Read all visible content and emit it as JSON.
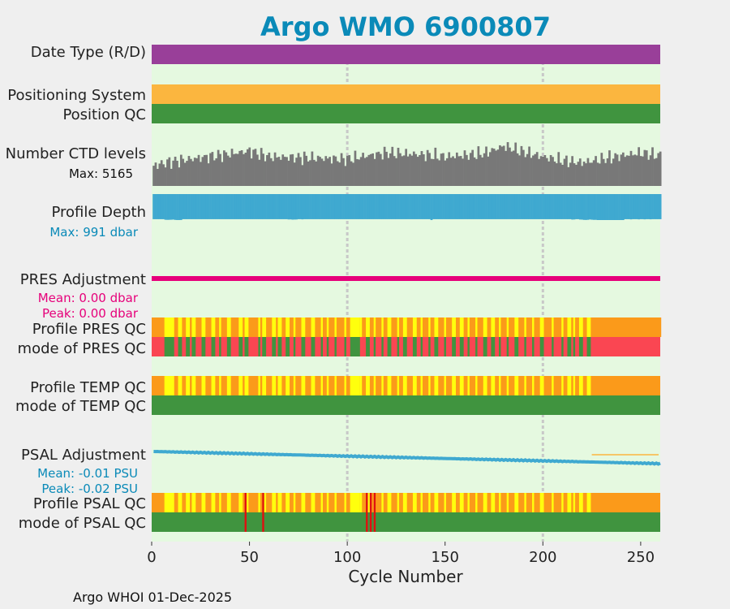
{
  "chart_data": {
    "type": "bar",
    "title": "Argo WMO 6900807",
    "xlabel": "Cycle Number",
    "footer": "Argo WHOI 01-Dec-2025",
    "xlim": [
      0,
      260
    ],
    "xticks": [
      "0",
      "50",
      "100",
      "150",
      "200",
      "250"
    ],
    "grid_x": [
      100,
      200
    ],
    "row_labels": {
      "date_type": "Date Type (R/D)",
      "positioning_system": "Positioning System",
      "position_qc": "Position QC",
      "number_ctd_levels": "Number CTD levels",
      "profile_depth": "Profile Depth",
      "pres_adjustment": "PRES Adjustment",
      "profile_pres_qc": "Profile PRES QC",
      "mode_pres_qc": "mode of PRES QC",
      "profile_temp_qc": "Profile TEMP QC",
      "mode_temp_qc": "mode of TEMP QC",
      "psal_adjustment": "PSAL Adjustment",
      "profile_psal_qc": "Profile PSAL QC",
      "mode_psal_qc": "mode of PSAL QC"
    },
    "annotations": {
      "ctd_max": "Max: 5165",
      "depth_max": "Max:  991 dbar",
      "pres_mean": "Mean: 0.00 dbar",
      "pres_peak": "Peak: 0.00 dbar",
      "psal_mean": "Mean: -0.01 PSU",
      "psal_peak": "Peak: -0.02 PSU"
    },
    "colors": {
      "title": "#0a8ab8",
      "panel_bg": "#e5f9e0",
      "page_bg": "#efefef",
      "date_type": "#993f99",
      "positioning": "#fbb63f",
      "qc_good": "#40943f",
      "qc_orange": "#fb9a1a",
      "qc_yellow": "#ffff0d",
      "qc_red": "#fa4652",
      "qc_darkred": "#e01010",
      "ctd_bars": "#787878",
      "depth": "#3fa9d0",
      "pres_adj": "#e6007a",
      "psal_adj": "#3fa9d0",
      "psal_ref": "#fbb63f"
    },
    "number_ctd_levels": {
      "max": 5165,
      "anchors": [
        [
          1,
          0.42
        ],
        [
          10,
          0.5
        ],
        [
          25,
          0.58
        ],
        [
          40,
          0.66
        ],
        [
          50,
          0.72
        ],
        [
          60,
          0.6
        ],
        [
          80,
          0.58
        ],
        [
          100,
          0.55
        ],
        [
          110,
          0.62
        ],
        [
          120,
          0.68
        ],
        [
          140,
          0.64
        ],
        [
          150,
          0.6
        ],
        [
          160,
          0.63
        ],
        [
          170,
          0.67
        ],
        [
          180,
          0.82
        ],
        [
          190,
          0.7
        ],
        [
          200,
          0.6
        ],
        [
          210,
          0.52
        ],
        [
          220,
          0.48
        ],
        [
          230,
          0.55
        ],
        [
          240,
          0.62
        ],
        [
          250,
          0.68
        ],
        [
          260,
          0.62
        ]
      ]
    },
    "profile_depth": {
      "max_dbar": 991,
      "baseline_dbar": 958,
      "deep_cycles": [
        [
          7,
          980
        ],
        [
          8,
          983
        ],
        [
          9,
          981
        ],
        [
          10,
          978
        ],
        [
          11,
          972
        ],
        [
          12,
          985
        ],
        [
          13,
          990
        ],
        [
          14,
          990
        ],
        [
          15,
          988
        ],
        [
          70,
          968
        ],
        [
          71,
          966
        ],
        [
          72,
          974
        ],
        [
          73,
          971
        ],
        [
          74,
          969
        ],
        [
          77,
          964
        ],
        [
          143,
          991
        ],
        [
          215,
          972
        ],
        [
          216,
          969
        ],
        [
          219,
          972
        ],
        [
          220,
          975
        ],
        [
          221,
          985
        ],
        [
          222,
          987
        ],
        [
          223,
          982
        ],
        [
          224,
          970
        ],
        [
          225,
          978
        ],
        [
          226,
          984
        ],
        [
          227,
          983
        ],
        [
          228,
          991
        ],
        [
          229,
          991
        ],
        [
          230,
          991
        ],
        [
          231,
          991
        ],
        [
          232,
          991
        ],
        [
          233,
          991
        ],
        [
          234,
          991
        ],
        [
          235,
          991
        ],
        [
          236,
          991
        ],
        [
          237,
          991
        ],
        [
          238,
          991
        ],
        [
          239,
          991
        ],
        [
          240,
          991
        ],
        [
          241,
          991
        ],
        [
          245,
          966
        ],
        [
          249,
          965
        ],
        [
          252,
          964
        ],
        [
          255,
          963
        ]
      ]
    },
    "pres_adjustment": {
      "mean": 0.0,
      "peak": 0.0,
      "unit": "dbar"
    },
    "psal_adjustment": {
      "mean": -0.01,
      "peak": -0.02,
      "unit": "PSU",
      "start": -0.004,
      "end": -0.02,
      "ref_start_cycle": 225
    },
    "yellow_ranges": [
      [
        7,
        11
      ],
      [
        14,
        15
      ],
      [
        18,
        19
      ],
      [
        21,
        22
      ],
      [
        26,
        27
      ],
      [
        31,
        32
      ],
      [
        35,
        35
      ],
      [
        39,
        40
      ],
      [
        45,
        46
      ],
      [
        48,
        49
      ],
      [
        55,
        55
      ],
      [
        57,
        58
      ],
      [
        62,
        63
      ],
      [
        65,
        66
      ],
      [
        69,
        70
      ],
      [
        73,
        73
      ],
      [
        77,
        78
      ],
      [
        82,
        83
      ],
      [
        87,
        87
      ],
      [
        90,
        90
      ],
      [
        94,
        94
      ],
      [
        99,
        99
      ],
      [
        102,
        103
      ],
      [
        107,
        107
      ],
      [
        110,
        111
      ],
      [
        114,
        114
      ],
      [
        118,
        118
      ],
      [
        121,
        122
      ],
      [
        126,
        126
      ],
      [
        129,
        130
      ],
      [
        134,
        135
      ],
      [
        138,
        138
      ],
      [
        142,
        142
      ],
      [
        145,
        146
      ],
      [
        150,
        150
      ],
      [
        154,
        155
      ],
      [
        158,
        159
      ],
      [
        162,
        162
      ],
      [
        166,
        166
      ],
      [
        170,
        171
      ],
      [
        174,
        175
      ],
      [
        178,
        178
      ],
      [
        182,
        182
      ],
      [
        186,
        187
      ],
      [
        191,
        191
      ],
      [
        195,
        195
      ],
      [
        199,
        200
      ],
      [
        205,
        205
      ],
      [
        210,
        210
      ],
      [
        213,
        214
      ],
      [
        216,
        216
      ],
      [
        219,
        220
      ],
      [
        223,
        224
      ]
    ],
    "big_yellow_ranges": [
      [
        102,
        106
      ]
    ],
    "green_in_pres_mode": [
      [
        7,
        11
      ],
      [
        14,
        15
      ],
      [
        18,
        19
      ],
      [
        21,
        22
      ],
      [
        26,
        27
      ],
      [
        31,
        32
      ],
      [
        35,
        35
      ],
      [
        39,
        40
      ],
      [
        45,
        46
      ],
      [
        48,
        49
      ],
      [
        55,
        55
      ],
      [
        57,
        58
      ],
      [
        62,
        63
      ],
      [
        65,
        66
      ],
      [
        69,
        70
      ],
      [
        73,
        73
      ],
      [
        77,
        78
      ],
      [
        82,
        83
      ],
      [
        87,
        87
      ],
      [
        90,
        90
      ],
      [
        94,
        94
      ],
      [
        99,
        99
      ],
      [
        102,
        106
      ],
      [
        110,
        111
      ],
      [
        114,
        114
      ],
      [
        118,
        118
      ],
      [
        121,
        122
      ],
      [
        126,
        126
      ],
      [
        129,
        130
      ],
      [
        134,
        135
      ],
      [
        138,
        138
      ],
      [
        142,
        142
      ],
      [
        145,
        146
      ],
      [
        150,
        150
      ],
      [
        154,
        155
      ],
      [
        158,
        159
      ],
      [
        162,
        162
      ],
      [
        166,
        166
      ],
      [
        170,
        171
      ],
      [
        174,
        175
      ],
      [
        178,
        178
      ],
      [
        182,
        182
      ],
      [
        186,
        187
      ],
      [
        191,
        191
      ],
      [
        195,
        195
      ],
      [
        199,
        200
      ],
      [
        205,
        205
      ],
      [
        210,
        210
      ],
      [
        213,
        214
      ],
      [
        216,
        216
      ],
      [
        219,
        220
      ],
      [
        223,
        224
      ]
    ],
    "qc_data_end": 224,
    "psal_red_cycles": [
      48,
      57,
      110,
      112,
      114
    ]
  }
}
